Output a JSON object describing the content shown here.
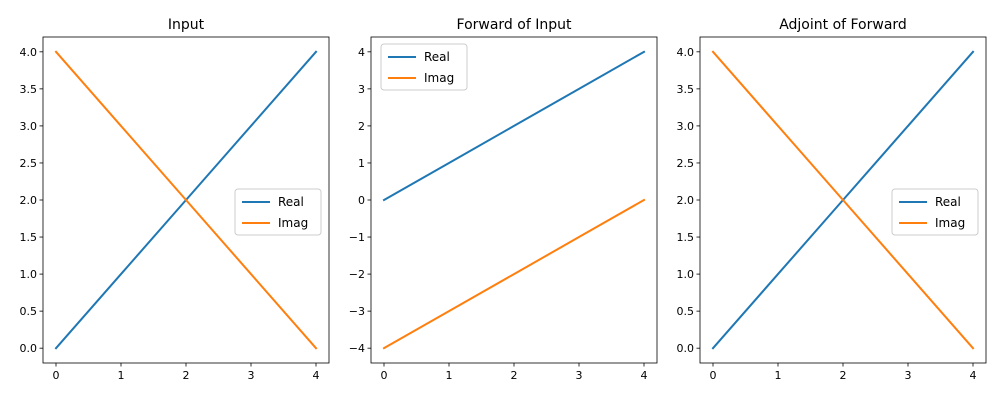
{
  "colors": {
    "real": "#1f77b4",
    "imag": "#ff7f0e"
  },
  "chart_data": [
    {
      "type": "line",
      "title": "Input",
      "x": [
        0,
        1,
        2,
        3,
        4
      ],
      "xticks": [
        "0",
        "1",
        "2",
        "3",
        "4"
      ],
      "yticks": [
        "0.0",
        "0.5",
        "1.0",
        "1.5",
        "2.0",
        "2.5",
        "3.0",
        "3.5",
        "4.0"
      ],
      "xlim": [
        -0.2,
        4.2
      ],
      "ylim": [
        -0.2,
        4.2
      ],
      "grid": false,
      "legend_position": "center-right",
      "series": [
        {
          "name": "Real",
          "color_key": "real",
          "values": [
            0,
            1,
            2,
            3,
            4
          ]
        },
        {
          "name": "Imag",
          "color_key": "imag",
          "values": [
            4,
            3,
            2,
            1,
            0
          ]
        }
      ]
    },
    {
      "type": "line",
      "title": "Forward of Input",
      "x": [
        0,
        1,
        2,
        3,
        4
      ],
      "xticks": [
        "0",
        "1",
        "2",
        "3",
        "4"
      ],
      "yticks": [
        "−4",
        "−3",
        "−2",
        "−1",
        "0",
        "1",
        "2",
        "3",
        "4"
      ],
      "xlim": [
        -0.2,
        4.2
      ],
      "ylim": [
        -4.4,
        4.4
      ],
      "grid": false,
      "legend_position": "top-left",
      "series": [
        {
          "name": "Real",
          "color_key": "real",
          "values": [
            0,
            1,
            2,
            3,
            4
          ]
        },
        {
          "name": "Imag",
          "color_key": "imag",
          "values": [
            -4,
            -3,
            -2,
            -1,
            0
          ]
        }
      ]
    },
    {
      "type": "line",
      "title": "Adjoint of Forward",
      "x": [
        0,
        1,
        2,
        3,
        4
      ],
      "xticks": [
        "0",
        "1",
        "2",
        "3",
        "4"
      ],
      "yticks": [
        "0.0",
        "0.5",
        "1.0",
        "1.5",
        "2.0",
        "2.5",
        "3.0",
        "3.5",
        "4.0"
      ],
      "xlim": [
        -0.2,
        4.2
      ],
      "ylim": [
        -0.2,
        4.2
      ],
      "grid": false,
      "legend_position": "center-right",
      "series": [
        {
          "name": "Real",
          "color_key": "real",
          "values": [
            0,
            1,
            2,
            3,
            4
          ]
        },
        {
          "name": "Imag",
          "color_key": "imag",
          "values": [
            4,
            3,
            2,
            1,
            0
          ]
        }
      ]
    }
  ]
}
